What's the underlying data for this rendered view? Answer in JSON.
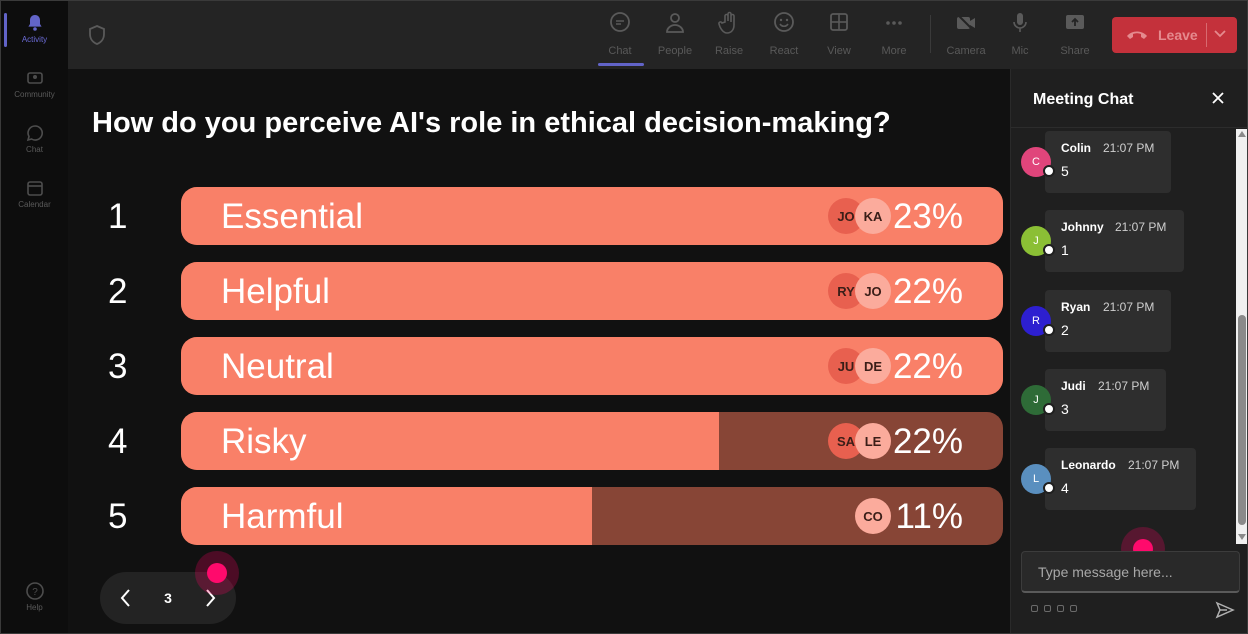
{
  "rail": {
    "items": [
      {
        "label": "Activity",
        "icon": "bell-icon"
      },
      {
        "label": "Community",
        "icon": "community-icon"
      },
      {
        "label": "Chat",
        "icon": "chat-icon"
      },
      {
        "label": "Calendar",
        "icon": "calendar-icon"
      },
      {
        "label": "Help",
        "icon": "help-icon"
      }
    ]
  },
  "toolbar": {
    "chat": "Chat",
    "people": "People",
    "raise": "Raise",
    "react": "React",
    "view": "View",
    "more": "More",
    "camera": "Camera",
    "mic": "Mic",
    "share": "Share",
    "leave": "Leave"
  },
  "poll": {
    "question": "How do you perceive AI's role in ethical decision-making?",
    "options": [
      {
        "num": "1",
        "label": "Essential",
        "pct": "23%",
        "fill": 1.0,
        "avatars": [
          "JO",
          "KA"
        ]
      },
      {
        "num": "2",
        "label": "Helpful",
        "pct": "22%",
        "fill": 1.0,
        "avatars": [
          "RY",
          "JO"
        ]
      },
      {
        "num": "3",
        "label": "Neutral",
        "pct": "22%",
        "fill": 1.0,
        "avatars": [
          "JU",
          "DE"
        ]
      },
      {
        "num": "4",
        "label": "Risky",
        "pct": "22%",
        "fill": 0.655,
        "avatars": [
          "SA",
          "LE"
        ]
      },
      {
        "num": "5",
        "label": "Harmful",
        "pct": "11%",
        "fill": 0.5,
        "avatars": [
          "CO"
        ]
      }
    ],
    "page": "3"
  },
  "chat": {
    "title": "Meeting Chat",
    "placeholder": "Type message here...",
    "messages": [
      {
        "initial": "C",
        "name": "Colin",
        "time": "21:07 PM",
        "text": "5",
        "color": "#e0457b"
      },
      {
        "initial": "J",
        "name": "Johnny",
        "time": "21:07 PM",
        "text": "1",
        "color": "#8bbf35"
      },
      {
        "initial": "R",
        "name": "Ryan",
        "time": "21:07 PM",
        "text": "2",
        "color": "#2d1fd0"
      },
      {
        "initial": "J",
        "name": "Judi",
        "time": "21:07 PM",
        "text": "3",
        "color": "#2e6b37"
      },
      {
        "initial": "L",
        "name": "Leonardo",
        "time": "21:07 PM",
        "text": "4",
        "color": "#5a8fbf"
      }
    ]
  }
}
